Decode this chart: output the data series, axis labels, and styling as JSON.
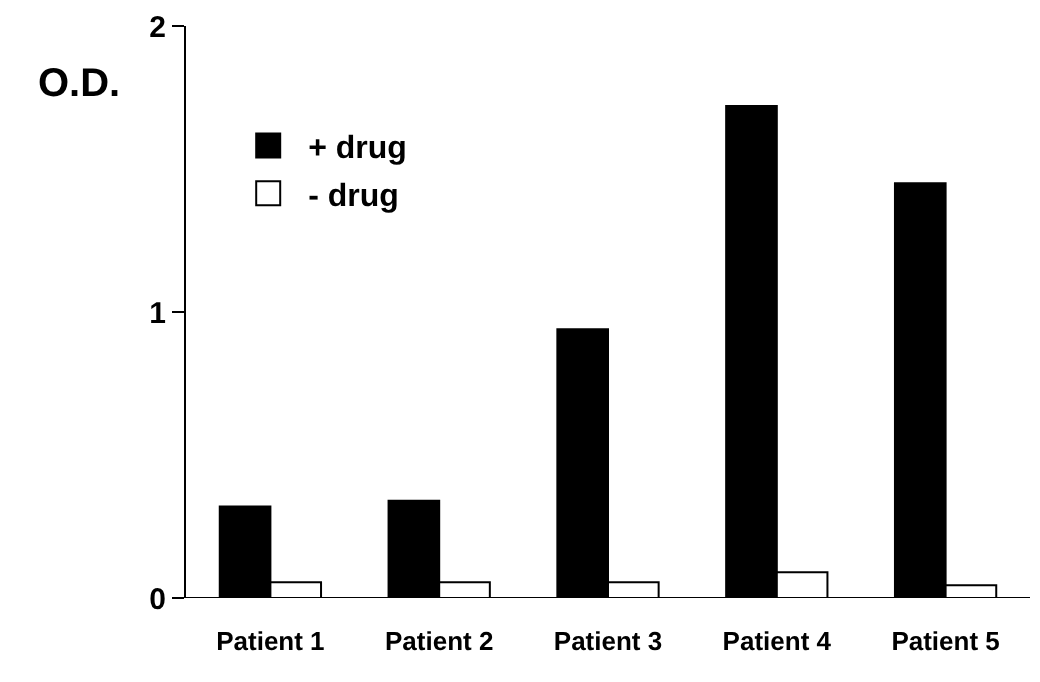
{
  "chart_data": {
    "type": "bar",
    "ylabel": "O.D.",
    "categories": [
      "Patient 1",
      "Patient 2",
      "Patient 3",
      "Patient 4",
      "Patient 5"
    ],
    "series": [
      {
        "name": "+ drug",
        "color": "#000000",
        "values": [
          0.32,
          0.34,
          0.94,
          1.72,
          1.45
        ]
      },
      {
        "name": "- drug",
        "color": "#ffffff",
        "values": [
          0.055,
          0.055,
          0.055,
          0.09,
          0.045
        ]
      }
    ],
    "ylim": [
      0,
      2
    ],
    "yticks": [
      0,
      1,
      2
    ],
    "legend": "top left"
  }
}
